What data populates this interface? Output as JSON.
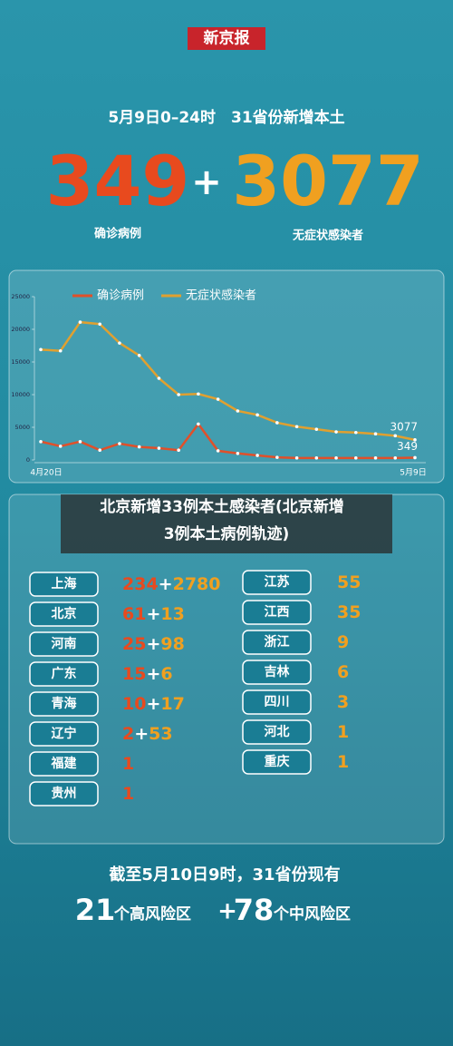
{
  "masthead": "新京报",
  "headline": "5月9日0–24时　31省份新增本土",
  "summary": {
    "confirmed": 349,
    "plus": "+",
    "asymptomatic": 3077,
    "confirmed_label": "确诊病例",
    "asymptomatic_label": "无症状感染者"
  },
  "chart_data": {
    "type": "line",
    "categories": [
      "4月20日",
      null,
      null,
      null,
      null,
      null,
      null,
      null,
      null,
      null,
      null,
      null,
      null,
      null,
      null,
      null,
      null,
      null,
      null,
      "5月9日"
    ],
    "series": [
      {
        "name": "确诊病例",
        "color": "#e0502a",
        "values": [
          2800,
          2100,
          2800,
          1500,
          2500,
          2000,
          1800,
          1500,
          5500,
          1400,
          1000,
          700,
          400,
          300,
          300,
          300,
          300,
          300,
          300,
          349
        ]
      },
      {
        "name": "无症状感染者",
        "color": "#e0a030",
        "values": [
          16900,
          16700,
          21100,
          20800,
          17900,
          16000,
          12500,
          10000,
          10100,
          9300,
          7500,
          6900,
          5700,
          5100,
          4700,
          4300,
          4200,
          4000,
          3700,
          3077
        ]
      }
    ],
    "ylim": [
      0,
      25000
    ],
    "yticks": [
      0,
      5000,
      10000,
      15000,
      20000,
      25000
    ]
  },
  "caption": [
    "北京新增33例本土感染者(北京新增",
    "3例本土病例轨迹)"
  ],
  "provinces": {
    "left": [
      {
        "name": "上海",
        "confirmed": 234,
        "asymptomatic": 2780
      },
      {
        "name": "北京",
        "confirmed": 61,
        "asymptomatic": 13
      },
      {
        "name": "河南",
        "confirmed": 25,
        "asymptomatic": 98
      },
      {
        "name": "广东",
        "confirmed": 15,
        "asymptomatic": 6
      },
      {
        "name": "青海",
        "confirmed": 10,
        "asymptomatic": 17
      },
      {
        "name": "辽宁",
        "confirmed": 2,
        "asymptomatic": 53
      },
      {
        "name": "福建",
        "confirmed": 1
      },
      {
        "name": "贵州",
        "confirmed": 1
      }
    ],
    "right": [
      {
        "name": "江苏",
        "asymptomatic": 55
      },
      {
        "name": "江西",
        "asymptomatic": 35
      },
      {
        "name": "浙江",
        "asymptomatic": 9
      },
      {
        "name": "吉林",
        "asymptomatic": 6
      },
      {
        "name": "四川",
        "asymptomatic": 3
      },
      {
        "name": "河北",
        "asymptomatic": 1
      },
      {
        "name": "重庆",
        "asymptomatic": 1
      }
    ]
  },
  "footer": {
    "line1": "截至5月10日9时，31省份现有",
    "high": 21,
    "high_label": "个高风险区",
    "plus": "+",
    "mid": 78,
    "mid_label": "个中风险区"
  }
}
